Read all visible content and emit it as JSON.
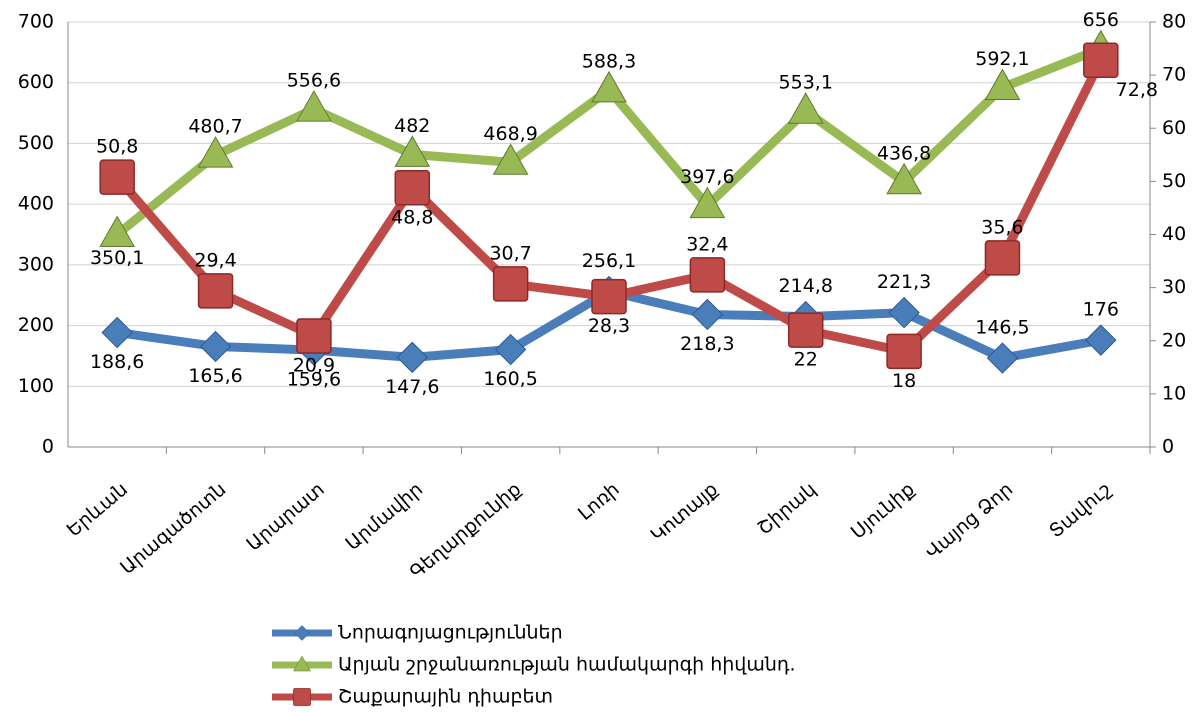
{
  "chart_data": {
    "type": "line",
    "categories": [
      "Երևան",
      "Արագածոտն",
      "Արարատ",
      "Արմավիր",
      "Գեղարքունիք",
      "Լոռի",
      "Կոտայք",
      "Շիրակ",
      "Սյունիք",
      "Վայոց Ձոր",
      "Տավուշ"
    ],
    "series": [
      {
        "name": "Նորագոյացություններ",
        "color": "#4a7ebb",
        "marker": "diamond",
        "values": [
          188.6,
          165.6,
          159.6,
          147.6,
          160.5,
          256.1,
          218.3,
          214.8,
          221.3,
          146.5,
          176
        ],
        "value_labels": [
          "188,6",
          "165,6",
          "159,6",
          "147,6",
          "160,5",
          "256,1",
          "218,3",
          "214,8",
          "221,3",
          "146,5",
          "176"
        ]
      },
      {
        "name": "Արյան շրջանառության համակարգի հիվանդ.",
        "color": "#98b954",
        "marker": "triangle",
        "values": [
          350.1,
          480.7,
          556.6,
          482,
          468.9,
          588.3,
          397.6,
          553.1,
          436.8,
          592.1,
          656
        ],
        "value_labels": [
          "350,1",
          "480,7",
          "556,6",
          "482",
          "468,9",
          "588,3",
          "397,6",
          "553,1",
          "436,8",
          "592,1",
          "656"
        ]
      },
      {
        "name": "Շաքարային դիաբետ",
        "color": "#be4b48",
        "marker": "square",
        "axis": "y2",
        "values": [
          50.8,
          29.4,
          20.9,
          48.8,
          30.7,
          28.3,
          32.4,
          22,
          18,
          35.6,
          72.8
        ],
        "value_labels": [
          "50,8",
          "29,4",
          "20,9",
          "48,8",
          "30,7",
          "28,3",
          "32,4",
          "22",
          "18",
          "35,6",
          "72,8"
        ]
      }
    ],
    "ylim": [
      0,
      700
    ],
    "yticks": [
      0,
      100,
      200,
      300,
      400,
      500,
      600,
      700
    ],
    "y2lim": [
      0,
      80
    ],
    "y2ticks": [
      0,
      10,
      20,
      30,
      40,
      50,
      60,
      70,
      80
    ],
    "grid": true,
    "legend": "bottom"
  }
}
